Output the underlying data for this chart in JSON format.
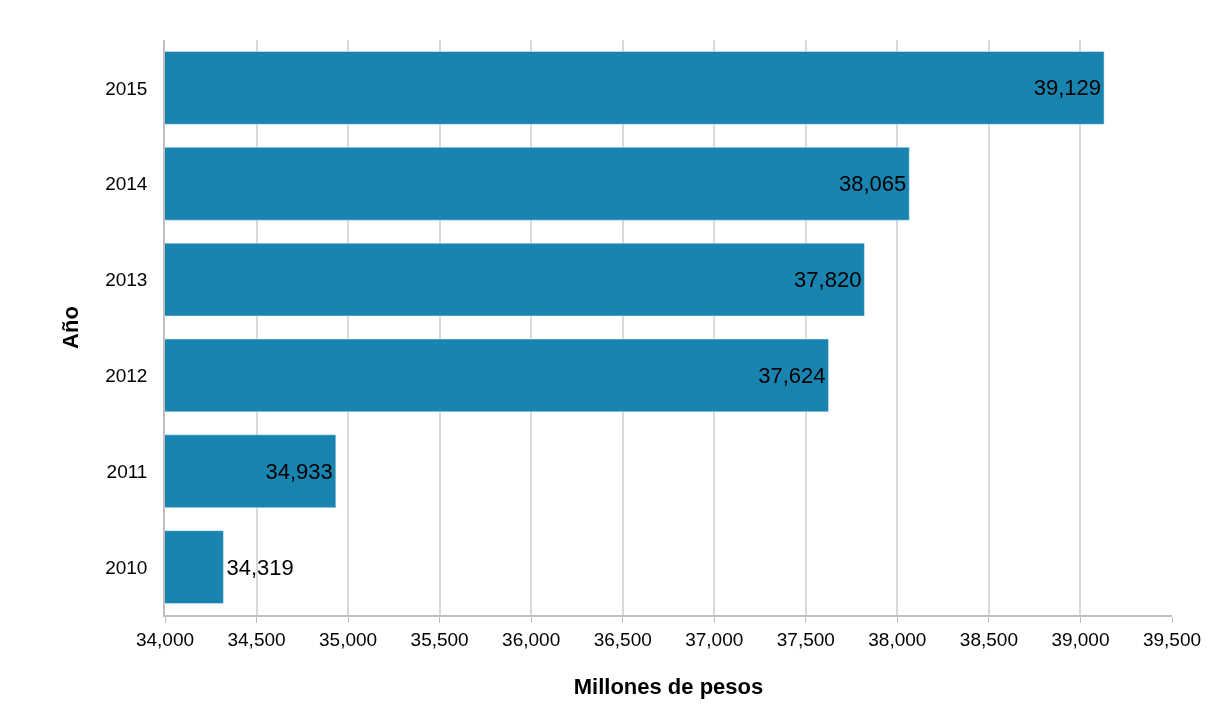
{
  "chart_data": {
    "type": "bar",
    "orientation": "horizontal",
    "xlabel": "Millones de pesos",
    "ylabel": "Año",
    "categories": [
      "2015",
      "2014",
      "2013",
      "2012",
      "2011",
      "2010"
    ],
    "values": [
      39129,
      38065,
      37820,
      37624,
      34933,
      34319
    ],
    "color": "#1984b0",
    "value_labels": [
      "39,129",
      "38,065",
      "37,820",
      "37,624",
      "34,933",
      "34,319"
    ],
    "grid": "x",
    "legend": false,
    "xlim": [
      34000,
      39500
    ],
    "xticks": [
      {
        "value": 34000,
        "label": "34,000"
      },
      {
        "value": 34500,
        "label": "34,500"
      },
      {
        "value": 35000,
        "label": "35,000"
      },
      {
        "value": 35500,
        "label": "35,500"
      },
      {
        "value": 36000,
        "label": "36,000"
      },
      {
        "value": 36500,
        "label": "36,500"
      },
      {
        "value": 37000,
        "label": "37,000"
      },
      {
        "value": 37500,
        "label": "37,500"
      },
      {
        "value": 38000,
        "label": "38,000"
      },
      {
        "value": 38500,
        "label": "38,500"
      },
      {
        "value": 39000,
        "label": "39,000"
      },
      {
        "value": 39500,
        "label": "39,500"
      }
    ]
  }
}
